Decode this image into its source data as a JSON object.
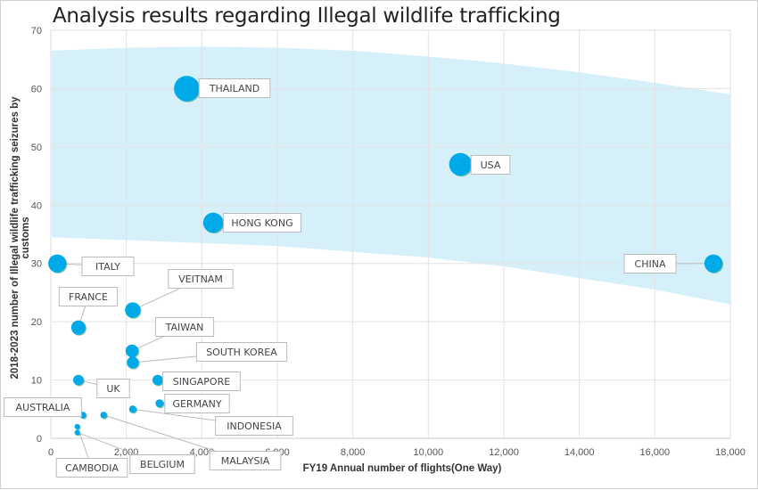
{
  "chart_data": {
    "type": "scatter",
    "title": "Analysis results regarding Illegal wildlife trafficking",
    "xlabel": "FY19 Annual number of flights(One Way)",
    "ylabel": "2018-2023 number of Illegal wildlife trafficking seizures by customs",
    "xlim": [
      0,
      18000
    ],
    "ylim": [
      0,
      70
    ],
    "xticks": [
      "0",
      "2,000",
      "4,000",
      "6,000",
      "8,000",
      "10,000",
      "12,000",
      "14,000",
      "16,000",
      "18,000"
    ],
    "yticks": [
      "0",
      "10",
      "20",
      "30",
      "40",
      "50",
      "60",
      "70"
    ],
    "grid": true,
    "bubble_color": "#00a9e8",
    "band_color": "#d6f0fa",
    "confidence_band": {
      "x": [
        0,
        2000,
        4000,
        6000,
        8000,
        10000,
        12000,
        14000,
        16000,
        18000
      ],
      "upper": [
        66.5,
        67,
        67.2,
        67,
        66.5,
        65.5,
        64.3,
        62.8,
        61,
        59
      ],
      "lower": [
        34.5,
        34,
        33.5,
        33,
        32,
        31,
        29.5,
        27.5,
        25.5,
        23
      ]
    },
    "points": [
      {
        "label": "THAILAND",
        "x": 3600,
        "y": 60
      },
      {
        "label": "USA",
        "x": 10850,
        "y": 47
      },
      {
        "label": "HONG KONG",
        "x": 4300,
        "y": 37
      },
      {
        "label": "ITALY",
        "x": 170,
        "y": 30
      },
      {
        "label": "CHINA",
        "x": 17550,
        "y": 30
      },
      {
        "label": "VEITNAM",
        "x": 2170,
        "y": 22
      },
      {
        "label": "FRANCE",
        "x": 730,
        "y": 19
      },
      {
        "label": "TAIWAN",
        "x": 2150,
        "y": 15
      },
      {
        "label": "SOUTH KOREA",
        "x": 2170,
        "y": 13
      },
      {
        "label": "UK",
        "x": 730,
        "y": 10
      },
      {
        "label": "SINGAPORE",
        "x": 2830,
        "y": 10
      },
      {
        "label": "GERMANY",
        "x": 2880,
        "y": 6
      },
      {
        "label": "INDONESIA",
        "x": 2170,
        "y": 5
      },
      {
        "label": "AUSTRALIA",
        "x": 850,
        "y": 4
      },
      {
        "label": "MALAYSIA",
        "x": 1400,
        "y": 4
      },
      {
        "label": "CAMBODIA",
        "x": 700,
        "y": 2
      },
      {
        "label": "BELGIUM",
        "x": 700,
        "y": 1
      }
    ]
  }
}
